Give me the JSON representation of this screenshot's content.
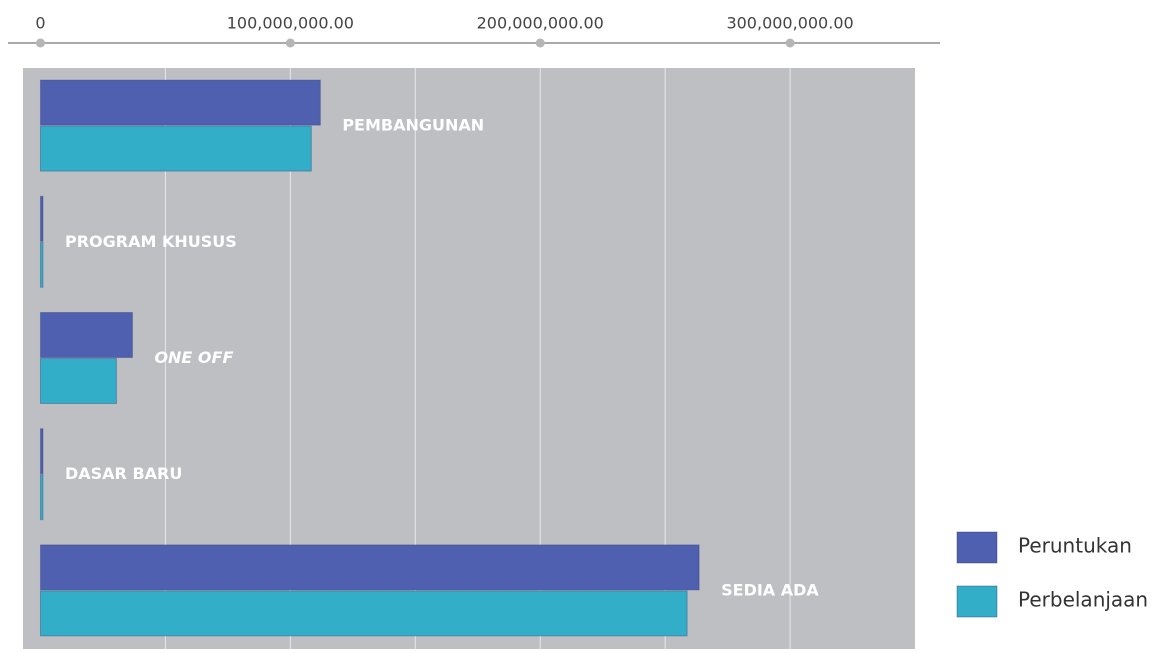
{
  "chart_data": {
    "type": "hbar",
    "categories": [
      "PEMBANGUNAN",
      "PROGRAM KHUSUS",
      "ONE OFF",
      "DASAR BARU",
      "SEDIA ADA"
    ],
    "series": [
      {
        "name": "Peruntukan",
        "color": "#5060b0",
        "values": [
          112000000,
          1000000,
          36800000,
          1000000,
          263600000
        ]
      },
      {
        "name": "Perbelanjaan",
        "color": "#33aec8",
        "values": [
          108400000,
          1000000,
          30400000,
          1000000,
          258800000
        ]
      }
    ],
    "xlim": [
      -7000000,
      350000000
    ],
    "xticks": [
      0,
      {
        "value": 100000000,
        "label": "100,000,000.00"
      },
      {
        "value": 200000000,
        "label": "200,000,000.00"
      },
      {
        "value": 300000000,
        "label": "300,000,000.00"
      }
    ],
    "grid_minor": [
      50000000,
      150000000,
      250000000
    ],
    "italic_categories": [
      "ONE OFF"
    ],
    "grid": true,
    "legend": "lower right"
  }
}
